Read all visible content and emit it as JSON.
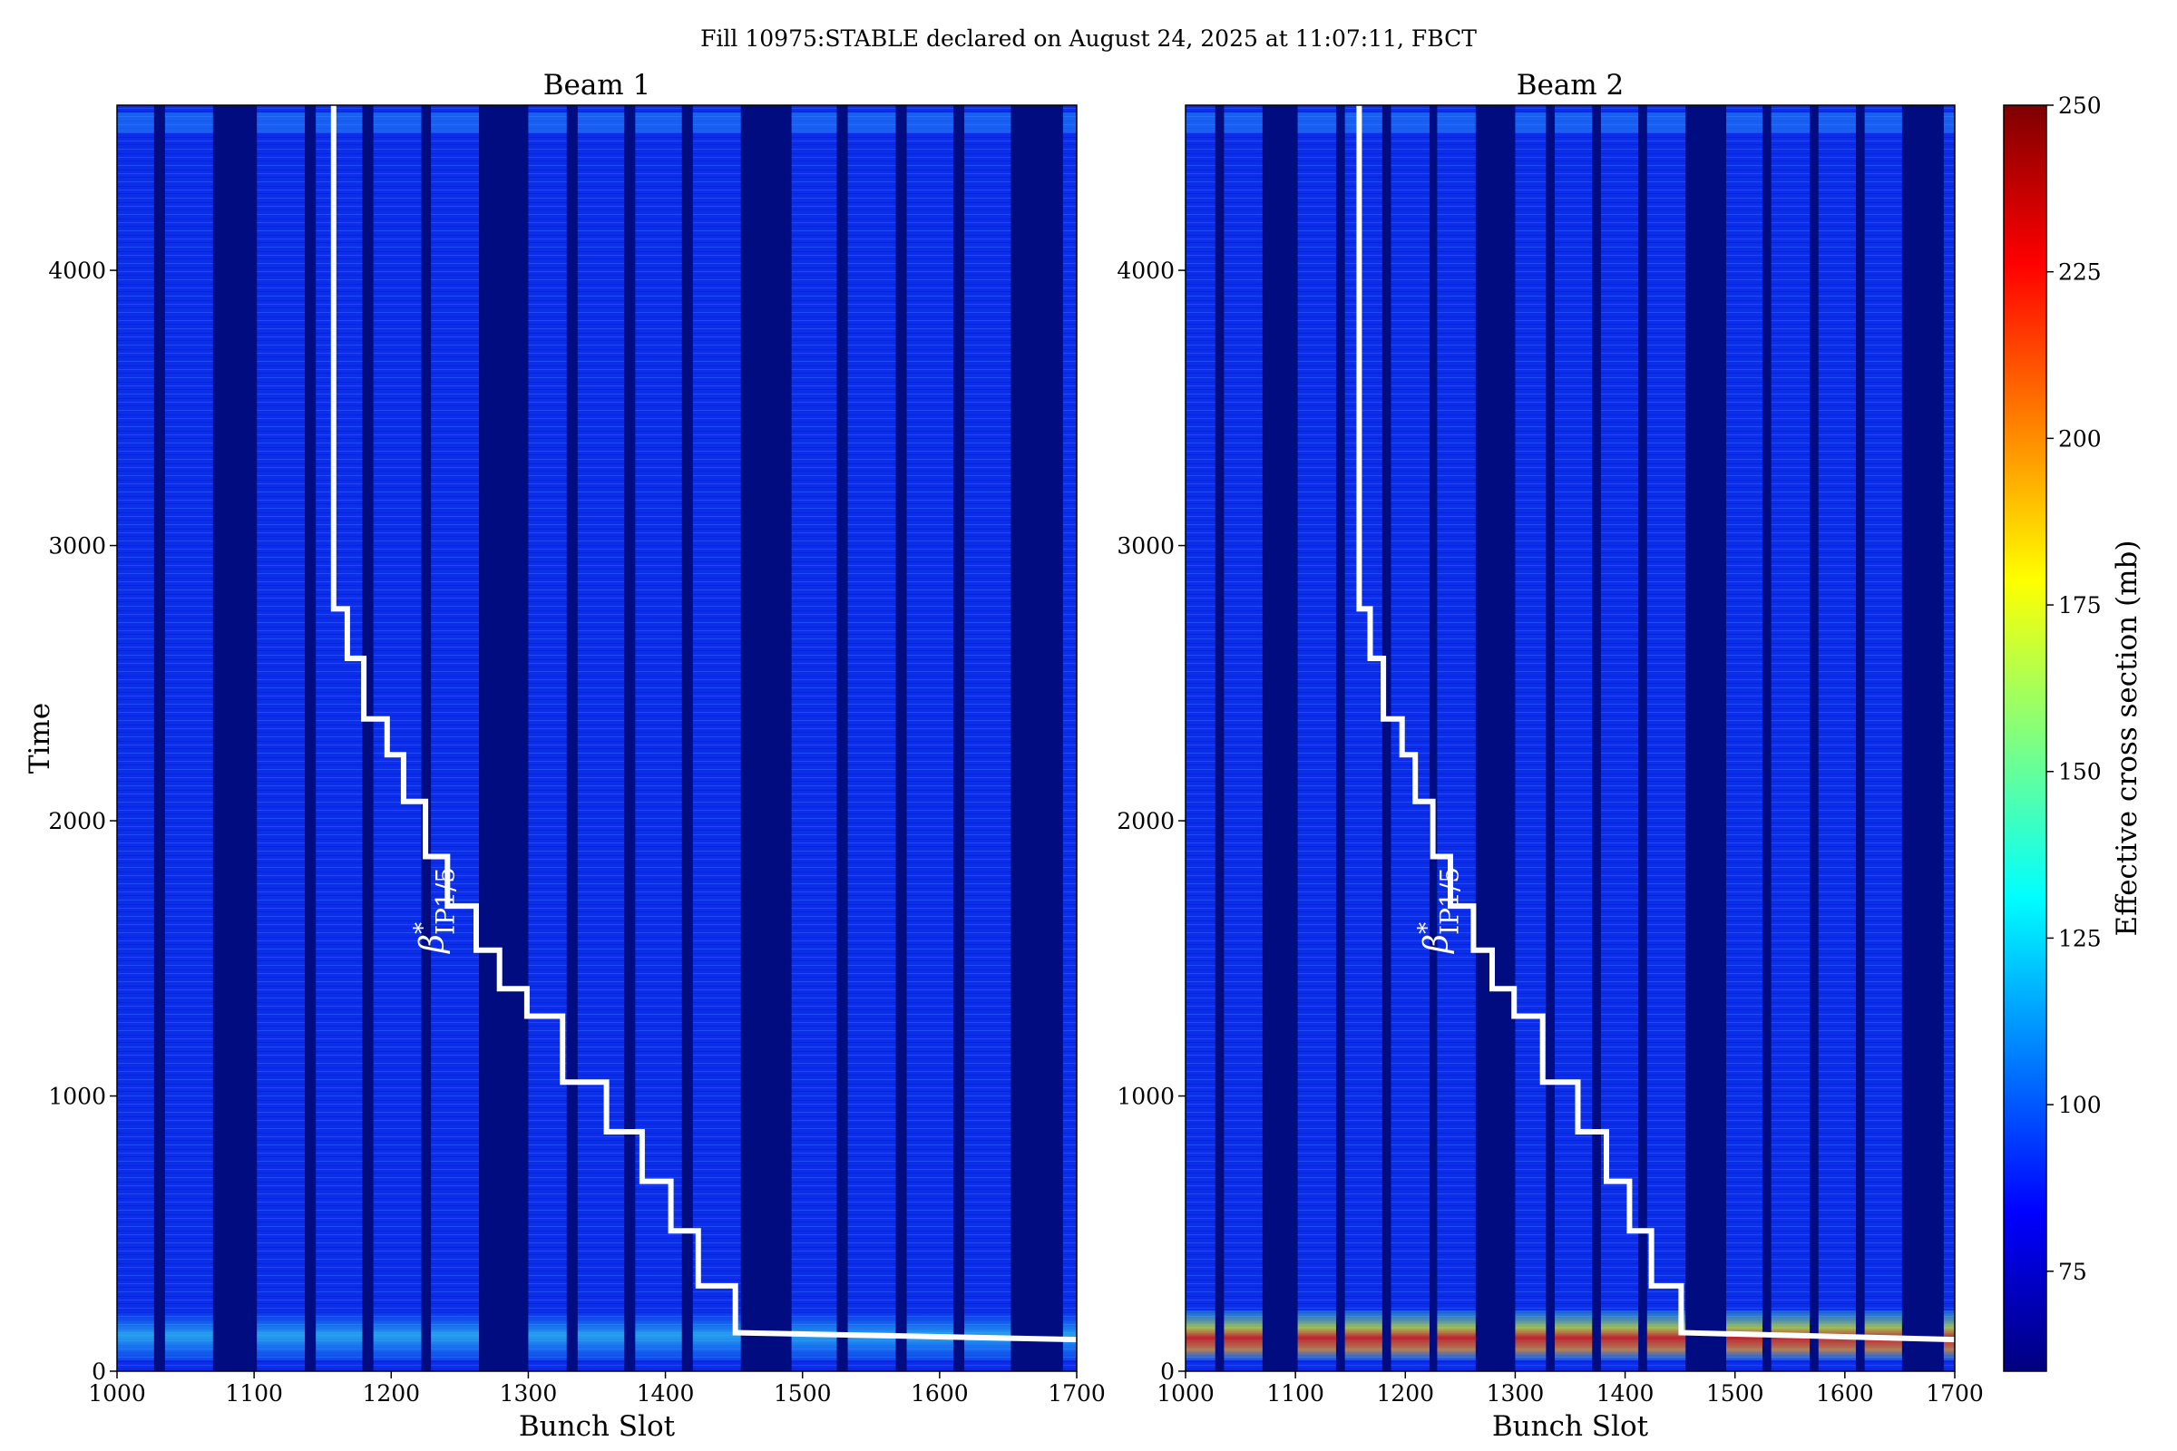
{
  "title": "Fill 10975:STABLE declared on August 24, 2025 at 11:07:11, FBCT",
  "colors": {
    "background": "#ffffff",
    "empty_slot": "#000c80",
    "stepline": "#ffffff",
    "colormap": [
      "#00007f",
      "#0000ff",
      "#007fff",
      "#00ffff",
      "#7fff7f",
      "#ffff00",
      "#ff7f00",
      "#ff0000",
      "#7f0000"
    ]
  },
  "chart_data": [
    {
      "type": "heatmap",
      "title": "Beam 1",
      "xlabel": "Bunch Slot",
      "ylabel": "Time",
      "xlim": [
        1000,
        1700
      ],
      "ylim": [
        0,
        4600
      ],
      "xticks": [
        "1000",
        "1100",
        "1200",
        "1300",
        "1400",
        "1500",
        "1600",
        "1700"
      ],
      "yticks": [
        "0",
        "1000",
        "2000",
        "3000",
        "4000"
      ],
      "filled_slot_ranges": [
        [
          1000,
          1027
        ],
        [
          1035,
          1070
        ],
        [
          1102,
          1137
        ],
        [
          1145,
          1179
        ],
        [
          1187,
          1222
        ],
        [
          1229,
          1264
        ],
        [
          1300,
          1328
        ],
        [
          1336,
          1370
        ],
        [
          1378,
          1412
        ],
        [
          1420,
          1455
        ],
        [
          1492,
          1525
        ],
        [
          1533,
          1568
        ],
        [
          1576,
          1610
        ],
        [
          1618,
          1652
        ],
        [
          1690,
          1700
        ]
      ],
      "stepline": {
        "label_prefix": "β",
        "label_superscript": "*",
        "label_subscript": "IP1/5",
        "label_position": [
          1238,
          1520
        ],
        "x": [
          1158,
          1158,
          1168,
          1168,
          1180,
          1180,
          1197,
          1197,
          1209,
          1209,
          1225,
          1225,
          1241,
          1241,
          1262,
          1262,
          1279,
          1279,
          1299,
          1299,
          1325,
          1325,
          1357,
          1357,
          1383,
          1383,
          1404,
          1404,
          1424,
          1424,
          1451,
          1451,
          1700
        ],
        "y": [
          4600,
          2770,
          2770,
          2590,
          2590,
          2370,
          2370,
          2240,
          2240,
          2070,
          2070,
          1870,
          1870,
          1690,
          1690,
          1530,
          1530,
          1390,
          1390,
          1290,
          1290,
          1050,
          1050,
          870,
          870,
          690,
          690,
          510,
          510,
          310,
          310,
          140,
          115
        ]
      }
    },
    {
      "type": "heatmap",
      "title": "Beam 2",
      "xlabel": "Bunch Slot",
      "ylabel": "",
      "xlim": [
        1000,
        1700
      ],
      "ylim": [
        0,
        4600
      ],
      "xticks": [
        "1000",
        "1100",
        "1200",
        "1300",
        "1400",
        "1500",
        "1600",
        "1700"
      ],
      "yticks": [
        "0",
        "1000",
        "2000",
        "3000",
        "4000"
      ],
      "filled_slot_ranges": [
        [
          1000,
          1027
        ],
        [
          1035,
          1070
        ],
        [
          1102,
          1137
        ],
        [
          1145,
          1179
        ],
        [
          1187,
          1222
        ],
        [
          1229,
          1264
        ],
        [
          1300,
          1328
        ],
        [
          1336,
          1370
        ],
        [
          1378,
          1412
        ],
        [
          1420,
          1455
        ],
        [
          1492,
          1525
        ],
        [
          1533,
          1568
        ],
        [
          1576,
          1610
        ],
        [
          1618,
          1652
        ],
        [
          1690,
          1700
        ]
      ],
      "stepline": {
        "label_prefix": "β",
        "label_superscript": "*",
        "label_subscript": "IP1/5",
        "label_position": [
          1238,
          1520
        ],
        "x": [
          1158,
          1158,
          1168,
          1168,
          1180,
          1180,
          1197,
          1197,
          1209,
          1209,
          1225,
          1225,
          1241,
          1241,
          1262,
          1262,
          1279,
          1279,
          1299,
          1299,
          1325,
          1325,
          1357,
          1357,
          1383,
          1383,
          1404,
          1404,
          1424,
          1424,
          1451,
          1451,
          1700
        ],
        "y": [
          4600,
          2770,
          2770,
          2590,
          2590,
          2370,
          2370,
          2240,
          2240,
          2070,
          2070,
          1870,
          1870,
          1690,
          1690,
          1530,
          1530,
          1390,
          1390,
          1290,
          1290,
          1050,
          1050,
          870,
          870,
          690,
          690,
          510,
          510,
          310,
          310,
          140,
          115
        ]
      }
    }
  ],
  "colorbar": {
    "label": "Effective cross section (mb)",
    "range": [
      60,
      250
    ],
    "ticks": [
      "75",
      "100",
      "125",
      "150",
      "175",
      "200",
      "225",
      "250"
    ]
  }
}
